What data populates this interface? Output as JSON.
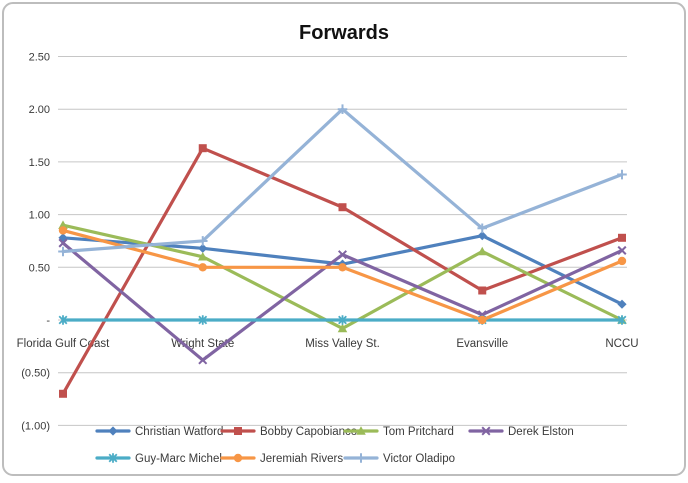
{
  "chart_data": {
    "type": "line",
    "title": "Forwards",
    "categories": [
      "Florida Gulf Coast",
      "Wright State",
      "Miss Valley St.",
      "Evansville",
      "NCCU"
    ],
    "series": [
      {
        "name": "Christian Watford",
        "color": "#4F81BD",
        "marker": "diamond",
        "values": [
          0.78,
          0.68,
          0.53,
          0.8,
          0.15
        ]
      },
      {
        "name": "Bobby Capobianco",
        "color": "#C0504D",
        "marker": "square",
        "values": [
          -0.7,
          1.63,
          1.07,
          0.28,
          0.78
        ]
      },
      {
        "name": "Tom Pritchard",
        "color": "#9BBB59",
        "marker": "triangle",
        "values": [
          0.9,
          0.6,
          -0.08,
          0.65,
          0.0
        ]
      },
      {
        "name": "Derek Elston",
        "color": "#8064A2",
        "marker": "x",
        "values": [
          0.73,
          -0.38,
          0.62,
          0.05,
          0.66
        ]
      },
      {
        "name": "Guy-Marc Michel",
        "color": "#4BACC6",
        "marker": "asterisk",
        "values": [
          0.0,
          0.0,
          0.0,
          0.0,
          0.0
        ]
      },
      {
        "name": "Jeremiah Rivers",
        "color": "#F79646",
        "marker": "circle",
        "values": [
          0.85,
          0.5,
          0.5,
          0.0,
          0.56
        ]
      },
      {
        "name": "Victor Oladipo",
        "color": "#95B3D7",
        "marker": "plus",
        "values": [
          0.65,
          0.75,
          2.0,
          0.87,
          1.38
        ]
      }
    ],
    "y_axis": {
      "min": -1.0,
      "max": 2.5,
      "tick_step": 0.5,
      "ticks": [
        {
          "value": 2.5,
          "label": "2.50"
        },
        {
          "value": 2.0,
          "label": "2.00"
        },
        {
          "value": 1.5,
          "label": "1.50"
        },
        {
          "value": 1.0,
          "label": "1.00"
        },
        {
          "value": 0.5,
          "label": "0.50"
        },
        {
          "value": 0.0,
          "label": "-"
        },
        {
          "value": -0.5,
          "label": "(0.50)"
        },
        {
          "value": -1.0,
          "label": "(1.00)"
        }
      ]
    },
    "grid": true,
    "legend": {
      "position": "bottom",
      "rows": [
        [
          "Christian Watford",
          "Bobby Capobianco",
          "Tom Pritchard",
          "Derek Elston"
        ],
        [
          "Guy-Marc Michel",
          "Jeremiah Rivers",
          "Victor Oladipo"
        ]
      ]
    },
    "frame_border_color": "#bdbdbd",
    "gridline_color": "#c6c6c6",
    "label_color": "#3a3a3a"
  }
}
